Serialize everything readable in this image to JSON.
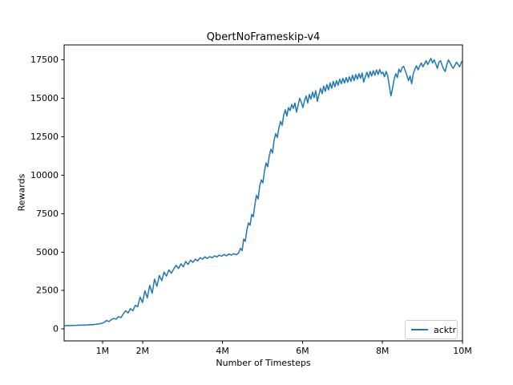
{
  "figure": {
    "background": "#ffffff",
    "text_color": "#000000"
  },
  "chart_data": {
    "type": "line",
    "title": "QbertNoFrameskip-v4",
    "xlabel": "Number of Timesteps",
    "ylabel": "Rewards",
    "grid": false,
    "xlim": [
      0.04,
      10.0
    ],
    "ylim": [
      -775,
      18475
    ],
    "x_ticks": {
      "values": [
        1,
        2,
        4,
        6,
        8,
        10
      ],
      "labels": [
        "1M",
        "2M",
        "4M",
        "6M",
        "8M",
        "10M"
      ]
    },
    "y_ticks": {
      "values": [
        0,
        2500,
        5000,
        7500,
        10000,
        12500,
        15000,
        17500
      ],
      "labels": [
        "0",
        "2500",
        "5000",
        "7500",
        "10000",
        "12500",
        "15000",
        "17500"
      ]
    },
    "legend": {
      "position": "lower right",
      "border_color": "#cccccc",
      "entries": [
        {
          "label": "acktr",
          "color": "#1f77b4"
        }
      ]
    },
    "series": [
      {
        "name": "acktr",
        "color": "#1f77b4",
        "x_unit_label": "M",
        "points": [
          [
            0.05,
            210
          ],
          [
            0.14,
            225
          ],
          [
            0.2,
            215
          ],
          [
            0.26,
            235
          ],
          [
            0.32,
            230
          ],
          [
            0.38,
            245
          ],
          [
            0.44,
            240
          ],
          [
            0.5,
            255
          ],
          [
            0.56,
            250
          ],
          [
            0.62,
            265
          ],
          [
            0.68,
            280
          ],
          [
            0.74,
            275
          ],
          [
            0.8,
            295
          ],
          [
            0.86,
            315
          ],
          [
            0.92,
            335
          ],
          [
            0.98,
            365
          ],
          [
            1.04,
            420
          ],
          [
            1.1,
            550
          ],
          [
            1.16,
            480
          ],
          [
            1.22,
            610
          ],
          [
            1.28,
            690
          ],
          [
            1.34,
            640
          ],
          [
            1.4,
            800
          ],
          [
            1.46,
            740
          ],
          [
            1.52,
            990
          ],
          [
            1.58,
            1180
          ],
          [
            1.64,
            1040
          ],
          [
            1.7,
            1320
          ],
          [
            1.76,
            1180
          ],
          [
            1.82,
            1540
          ],
          [
            1.88,
            1450
          ],
          [
            1.94,
            2080
          ],
          [
            2.0,
            1720
          ],
          [
            2.06,
            2480
          ],
          [
            2.12,
            2020
          ],
          [
            2.18,
            2840
          ],
          [
            2.24,
            2320
          ],
          [
            2.3,
            3240
          ],
          [
            2.36,
            2780
          ],
          [
            2.42,
            3480
          ],
          [
            2.48,
            3140
          ],
          [
            2.54,
            3700
          ],
          [
            2.6,
            3440
          ],
          [
            2.66,
            3840
          ],
          [
            2.72,
            3630
          ],
          [
            2.78,
            3900
          ],
          [
            2.84,
            4140
          ],
          [
            2.9,
            3930
          ],
          [
            2.96,
            4240
          ],
          [
            3.02,
            4040
          ],
          [
            3.08,
            4390
          ],
          [
            3.14,
            4190
          ],
          [
            3.2,
            4480
          ],
          [
            3.26,
            4330
          ],
          [
            3.32,
            4540
          ],
          [
            3.38,
            4430
          ],
          [
            3.44,
            4640
          ],
          [
            3.5,
            4540
          ],
          [
            3.56,
            4690
          ],
          [
            3.62,
            4590
          ],
          [
            3.68,
            4710
          ],
          [
            3.74,
            4630
          ],
          [
            3.8,
            4760
          ],
          [
            3.86,
            4680
          ],
          [
            3.92,
            4800
          ],
          [
            3.98,
            4730
          ],
          [
            4.04,
            4850
          ],
          [
            4.1,
            4760
          ],
          [
            4.16,
            4880
          ],
          [
            4.22,
            4800
          ],
          [
            4.28,
            4900
          ],
          [
            4.34,
            4830
          ],
          [
            4.4,
            4940
          ],
          [
            4.45,
            5250
          ],
          [
            4.49,
            5100
          ],
          [
            4.53,
            5850
          ],
          [
            4.57,
            5700
          ],
          [
            4.61,
            6450
          ],
          [
            4.65,
            6900
          ],
          [
            4.69,
            6750
          ],
          [
            4.73,
            7450
          ],
          [
            4.77,
            7300
          ],
          [
            4.81,
            8100
          ],
          [
            4.85,
            8700
          ],
          [
            4.89,
            8450
          ],
          [
            4.93,
            9300
          ],
          [
            4.97,
            9700
          ],
          [
            5.01,
            9500
          ],
          [
            5.05,
            10300
          ],
          [
            5.09,
            10800
          ],
          [
            5.13,
            10550
          ],
          [
            5.17,
            11300
          ],
          [
            5.21,
            11700
          ],
          [
            5.25,
            11450
          ],
          [
            5.29,
            12300
          ],
          [
            5.33,
            12700
          ],
          [
            5.37,
            12450
          ],
          [
            5.41,
            13100
          ],
          [
            5.45,
            13500
          ],
          [
            5.49,
            13250
          ],
          [
            5.53,
            13900
          ],
          [
            5.57,
            14250
          ],
          [
            5.61,
            13850
          ],
          [
            5.65,
            14400
          ],
          [
            5.69,
            14200
          ],
          [
            5.73,
            14600
          ],
          [
            5.77,
            14350
          ],
          [
            5.81,
            14700
          ],
          [
            5.85,
            14100
          ],
          [
            5.89,
            14550
          ],
          [
            5.93,
            15000
          ],
          [
            5.97,
            14750
          ],
          [
            6.01,
            14400
          ],
          [
            6.05,
            14850
          ],
          [
            6.09,
            15150
          ],
          [
            6.13,
            14700
          ],
          [
            6.17,
            15250
          ],
          [
            6.21,
            14950
          ],
          [
            6.25,
            15400
          ],
          [
            6.29,
            15050
          ],
          [
            6.33,
            15500
          ],
          [
            6.37,
            14800
          ],
          [
            6.41,
            15250
          ],
          [
            6.45,
            15650
          ],
          [
            6.49,
            15300
          ],
          [
            6.53,
            15800
          ],
          [
            6.57,
            15450
          ],
          [
            6.61,
            15900
          ],
          [
            6.65,
            15550
          ],
          [
            6.69,
            16000
          ],
          [
            6.73,
            15650
          ],
          [
            6.77,
            16100
          ],
          [
            6.81,
            15750
          ],
          [
            6.85,
            16150
          ],
          [
            6.89,
            15850
          ],
          [
            6.93,
            16250
          ],
          [
            6.97,
            15950
          ],
          [
            7.01,
            16300
          ],
          [
            7.05,
            16000
          ],
          [
            7.09,
            16350
          ],
          [
            7.13,
            16050
          ],
          [
            7.17,
            16400
          ],
          [
            7.21,
            16100
          ],
          [
            7.25,
            16500
          ],
          [
            7.29,
            16150
          ],
          [
            7.33,
            16550
          ],
          [
            7.37,
            16250
          ],
          [
            7.41,
            16600
          ],
          [
            7.45,
            16300
          ],
          [
            7.49,
            16650
          ],
          [
            7.53,
            16050
          ],
          [
            7.57,
            16400
          ],
          [
            7.61,
            16700
          ],
          [
            7.65,
            16350
          ],
          [
            7.69,
            16750
          ],
          [
            7.73,
            16450
          ],
          [
            7.77,
            16800
          ],
          [
            7.81,
            16500
          ],
          [
            7.85,
            16850
          ],
          [
            7.89,
            16550
          ],
          [
            7.93,
            16880
          ],
          [
            7.97,
            16600
          ],
          [
            8.01,
            16700
          ],
          [
            8.05,
            16400
          ],
          [
            8.09,
            16750
          ],
          [
            8.13,
            16450
          ],
          [
            8.17,
            15800
          ],
          [
            8.21,
            15150
          ],
          [
            8.25,
            15650
          ],
          [
            8.29,
            16250
          ],
          [
            8.33,
            16600
          ],
          [
            8.37,
            16350
          ],
          [
            8.41,
            16900
          ],
          [
            8.45,
            16700
          ],
          [
            8.49,
            17000
          ],
          [
            8.53,
            17080
          ],
          [
            8.57,
            16800
          ],
          [
            8.61,
            16500
          ],
          [
            8.65,
            16150
          ],
          [
            8.69,
            16450
          ],
          [
            8.73,
            15950
          ],
          [
            8.77,
            16600
          ],
          [
            8.81,
            16900
          ],
          [
            8.85,
            17120
          ],
          [
            8.89,
            16850
          ],
          [
            8.93,
            17100
          ],
          [
            8.97,
            17300
          ],
          [
            9.01,
            17050
          ],
          [
            9.05,
            17250
          ],
          [
            9.09,
            17450
          ],
          [
            9.13,
            17200
          ],
          [
            9.17,
            17400
          ],
          [
            9.21,
            17600
          ],
          [
            9.25,
            17300
          ],
          [
            9.29,
            17500
          ],
          [
            9.33,
            17250
          ],
          [
            9.37,
            16950
          ],
          [
            9.41,
            17350
          ],
          [
            9.45,
            17450
          ],
          [
            9.49,
            17150
          ],
          [
            9.53,
            16900
          ],
          [
            9.57,
            16750
          ],
          [
            9.61,
            17200
          ],
          [
            9.65,
            17500
          ],
          [
            9.69,
            17300
          ],
          [
            9.73,
            17100
          ],
          [
            9.77,
            16950
          ],
          [
            9.81,
            17150
          ],
          [
            9.85,
            17350
          ],
          [
            9.89,
            17200
          ],
          [
            9.93,
            17050
          ],
          [
            9.98,
            17400
          ]
        ]
      }
    ]
  }
}
